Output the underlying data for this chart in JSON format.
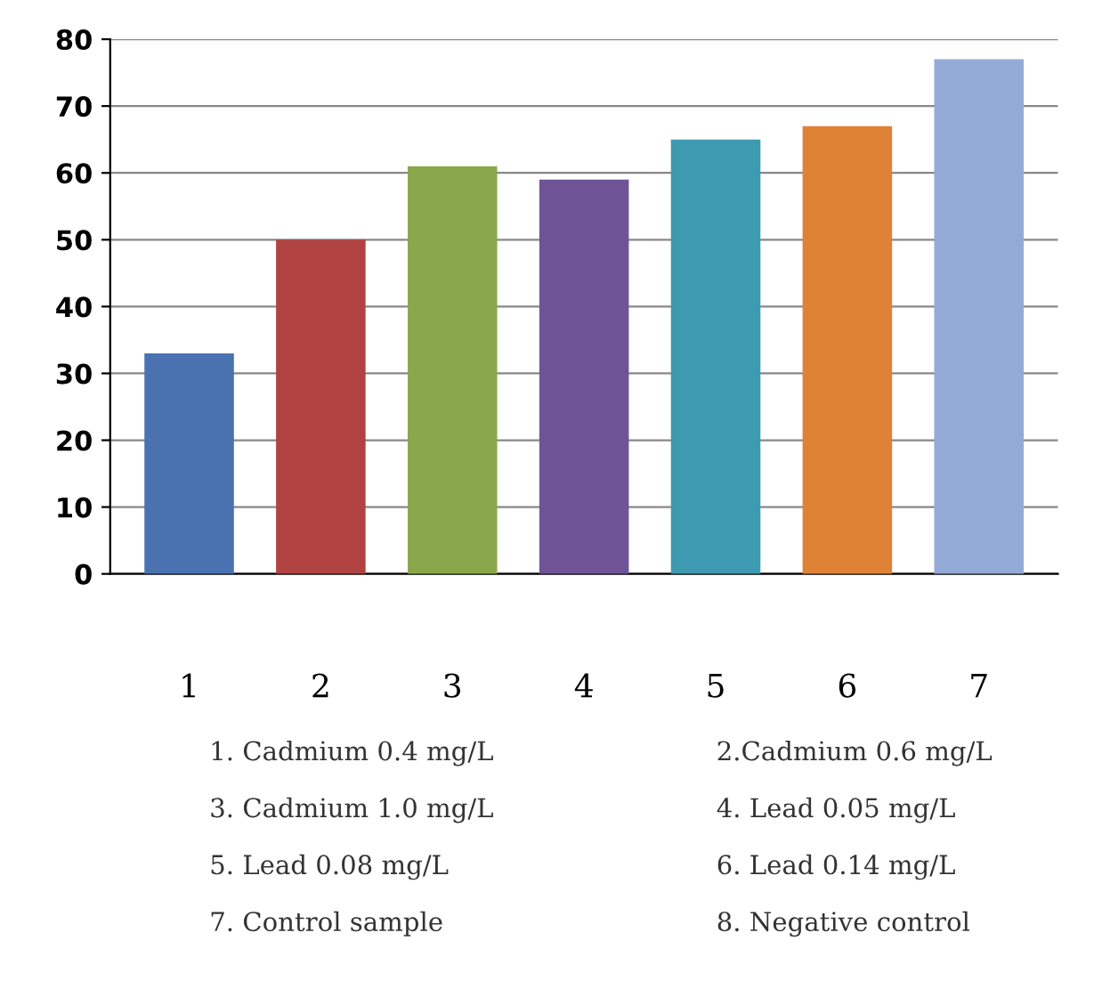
{
  "chart_data": {
    "type": "bar",
    "categories": [
      "1",
      "2",
      "3",
      "4",
      "5",
      "6",
      "7"
    ],
    "values": [
      33,
      50,
      61,
      59,
      65,
      67,
      77
    ],
    "colors": [
      "#4a72b0",
      "#b04341",
      "#8aa84b",
      "#6e5497",
      "#3d9ab0",
      "#df8236",
      "#94aad6"
    ],
    "ylim": [
      0,
      80
    ],
    "yticks": [
      0,
      10,
      20,
      30,
      40,
      50,
      60,
      70,
      80
    ],
    "grid": "y",
    "annotations": [
      "1. Cadmium 0.4 mg/L",
      "2.Cadmium 0.6 mg/L",
      "3. Cadmium 1.0 mg/L",
      "4. Lead 0.05 mg/L",
      "5. Lead 0.08 mg/L",
      "6. Lead 0.14 mg/L",
      "7. Control sample",
      "8. Negative control"
    ]
  }
}
